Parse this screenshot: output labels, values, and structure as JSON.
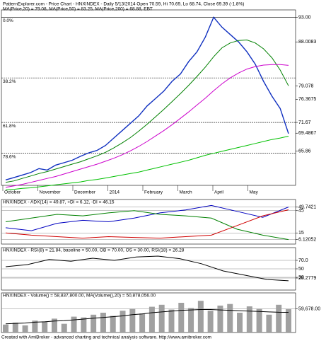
{
  "chart_data": [
    {
      "type": "line",
      "title": "PatternExplorer.com - Price Chart - HNXINDEX - Daily 5/13/2014 Open 70.59, Hi 70.69, Lo 68.74, Close 69.39 (-1.8%)",
      "subtitle": "MA(Price,20) = 79.08, MA(Price,50) = 83.25, MA(Price,200) = 68.88, EBT",
      "months": [
        "October",
        "November",
        "December",
        "2014",
        "February",
        "March",
        "April",
        "May"
      ],
      "ylim": [
        58.9,
        94.5
      ],
      "yticks": [
        {
          "value": 93,
          "label": "93.00"
        },
        88.0083,
        79.078,
        76.3675,
        71.67,
        69.4867,
        65.86
      ],
      "fib_levels": [
        {
          "value": 93,
          "label": "0.0%"
        },
        {
          "value": 80.7,
          "label": "38.2%"
        },
        {
          "value": 71.67,
          "label": "61.8%"
        },
        {
          "value": 65.4,
          "label": "78.6%"
        }
      ],
      "series": [
        {
          "name": "Close",
          "color": "#1030c0",
          "values": [
            60.0,
            60.5,
            61.0,
            61.5,
            62.3,
            62.0,
            63.0,
            63.5,
            64.0,
            64.8,
            65.5,
            66.0,
            67.0,
            68.5,
            70.0,
            71.5,
            73.0,
            75.0,
            76.5,
            78.0,
            80.0,
            81.5,
            84.0,
            86.0,
            89.0,
            93.0,
            91.0,
            89.5,
            88.0,
            86.0,
            83.5,
            80.0,
            77.0,
            74.5,
            69.4
          ]
        },
        {
          "name": "MA(Price,20)",
          "color": "#008000",
          "values": [
            59.5,
            59.8,
            60.3,
            60.8,
            61.3,
            61.7,
            62.2,
            62.7,
            63.2,
            63.7,
            64.3,
            64.9,
            65.6,
            66.5,
            67.5,
            68.6,
            69.9,
            71.3,
            72.8,
            74.3,
            75.9,
            77.5,
            79.2,
            81.0,
            82.9,
            85.0,
            86.8,
            87.8,
            88.3,
            88.4,
            87.8,
            86.6,
            84.8,
            82.3,
            79.1
          ]
        },
        {
          "name": "MA(Price,50)",
          "color": "#cc00cc",
          "values": [
            58.5,
            58.8,
            59.1,
            59.5,
            59.9,
            60.3,
            60.7,
            61.2,
            61.7,
            62.2,
            62.7,
            63.2,
            63.8,
            64.4,
            65.1,
            65.9,
            66.8,
            67.8,
            68.9,
            70.0,
            71.2,
            72.5,
            73.8,
            75.2,
            76.6,
            78.1,
            79.5,
            80.7,
            81.7,
            82.5,
            83.0,
            83.3,
            83.4,
            83.4,
            83.25
          ]
        },
        {
          "name": "MA(Price,200)",
          "color": "#00c000",
          "values": [
            58.0,
            58.1,
            58.3,
            58.4,
            58.6,
            58.8,
            59.0,
            59.2,
            59.4,
            59.6,
            59.9,
            60.1,
            60.4,
            60.7,
            61.0,
            61.3,
            61.6,
            62.0,
            62.4,
            62.8,
            63.2,
            63.6,
            64.0,
            64.5,
            65.0,
            65.4,
            65.8,
            66.2,
            66.6,
            67.0,
            67.4,
            67.8,
            68.2,
            68.5,
            68.88
          ]
        }
      ]
    },
    {
      "type": "line",
      "title": "HNXINDEX - ADX(14) = 49.87, +DI = 6.12, -DI = 46.15",
      "ylim": [
        0,
        60
      ],
      "yticks": [
        49.7421,
        45,
        15,
        6.12052
      ],
      "series": [
        {
          "name": "ADX",
          "color": "#0000c0",
          "values": [
            22,
            18,
            28,
            32,
            30,
            35,
            42,
            46,
            52,
            44,
            36,
            49.87
          ]
        },
        {
          "name": "+DI",
          "color": "#008000",
          "values": [
            30,
            35,
            40,
            38,
            42,
            45,
            40,
            38,
            35,
            20,
            12,
            6.12
          ]
        },
        {
          "name": "-DI",
          "color": "#d00000",
          "values": [
            15,
            12,
            10,
            8,
            10,
            9,
            8,
            10,
            12,
            25,
            38,
            46.15
          ]
        }
      ]
    },
    {
      "type": "line",
      "title": "HNXINDEX - RSI(8) = 21.84, baseline = 50.00, OB = 70.00, OS = 30.00, RSI(18) = 26.28",
      "ylim": [
        0,
        100
      ],
      "yticks": [
        {
          "value": 70,
          "label": "70.0"
        },
        50,
        30,
        28.2779
      ],
      "series": [
        {
          "name": "RSI",
          "color": "#000000",
          "values": [
            55,
            60,
            72,
            68,
            75,
            70,
            78,
            80,
            74,
            62,
            45,
            35,
            25,
            21.84
          ]
        }
      ]
    },
    {
      "type": "bar",
      "title": "HNXINDEX - Volume() = 58,837,800.00, MA(Volume(),20) = 50,878,056.00",
      "ylim": [
        0,
        100000000
      ],
      "yticks": [
        {
          "value": 59678000,
          "label": "59,678.00"
        }
      ],
      "series": [
        {
          "name": "Volume",
          "color": "#a0a0a0",
          "values": [
            20000000,
            25000000,
            18000000,
            30000000,
            28000000,
            35000000,
            22000000,
            40000000,
            38000000,
            45000000,
            50000000,
            42000000,
            55000000,
            60000000,
            48000000,
            65000000,
            70000000,
            58000000,
            75000000,
            62000000,
            80000000,
            55000000,
            68000000,
            72000000,
            50000000,
            66000000,
            60000000,
            45000000,
            70000000,
            58837800
          ]
        },
        {
          "name": "MA(Volume(),20)",
          "color": "#000000",
          "values": [
            22000000,
            23000000,
            24000000,
            26000000,
            27000000,
            29000000,
            30000000,
            32000000,
            34000000,
            36000000,
            38000000,
            40000000,
            42000000,
            45000000,
            47000000,
            50000000,
            52000000,
            54000000,
            56000000,
            57000000,
            58000000,
            58000000,
            57000000,
            56000000,
            55000000,
            54000000,
            53000000,
            52000000,
            51000000,
            50878056
          ]
        }
      ]
    }
  ],
  "footer": "Created with AmiBroker - advanced charting and technical analysis software. http://www.amibroker.com"
}
